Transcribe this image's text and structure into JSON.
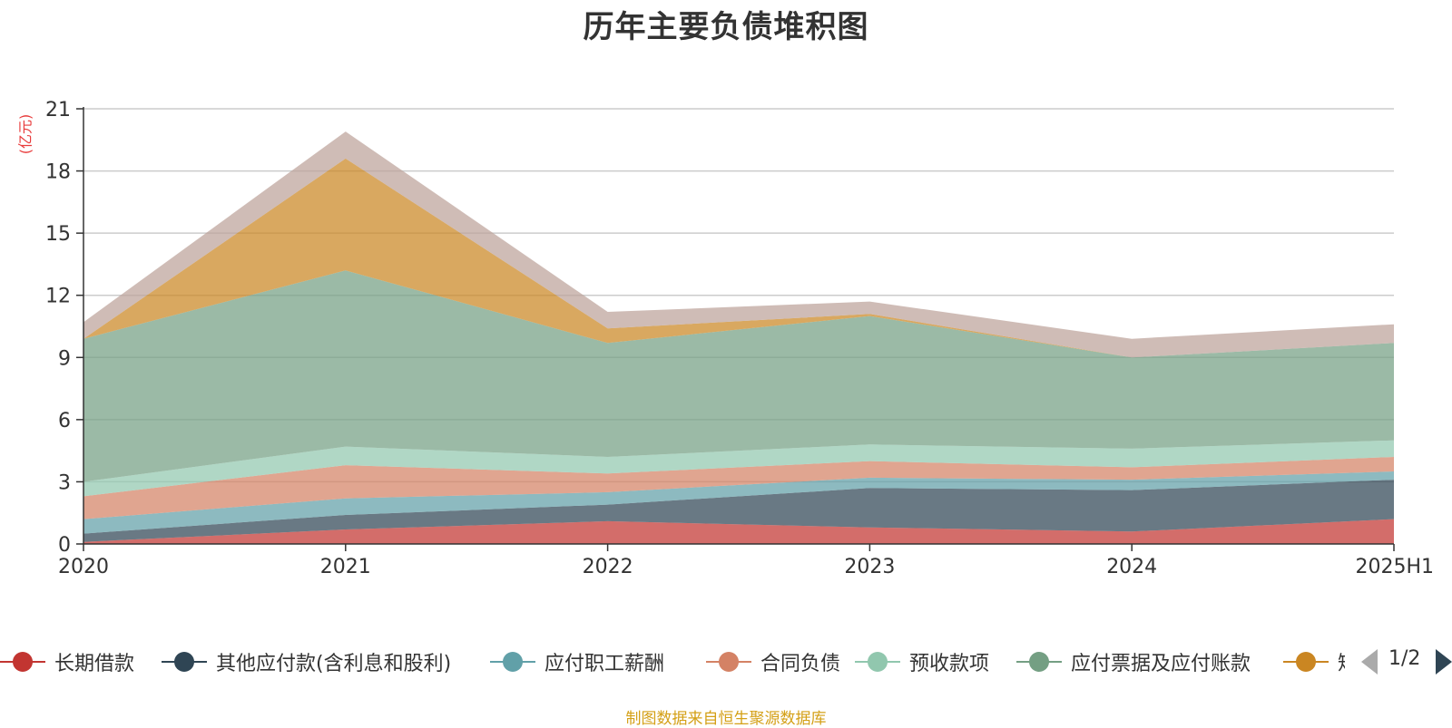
{
  "title": "历年主要负债堆积图",
  "unit_label": "(亿元)",
  "source_note": "制图数据来自恒生聚源数据库",
  "legend_pager": "1/2",
  "chart_data": {
    "type": "area",
    "stacked": true,
    "title": "历年主要负债堆积图",
    "ylabel": "(亿元)",
    "xlabel": "",
    "ylim": [
      0,
      21
    ],
    "yticks": [
      0,
      3,
      6,
      9,
      12,
      15,
      18,
      21
    ],
    "grid": true,
    "legend_position": "bottom",
    "categories": [
      "2020",
      "2021",
      "2022",
      "2023",
      "2024",
      "2025H1"
    ],
    "series": [
      {
        "name": "长期借款",
        "color": "#c23531",
        "values": [
          0.1,
          0.7,
          1.1,
          0.8,
          0.6,
          1.2
        ]
      },
      {
        "name": "其他应付款(含利息和股利)",
        "color": "#2f4554",
        "values": [
          0.4,
          0.7,
          0.8,
          1.9,
          2.0,
          1.9
        ]
      },
      {
        "name": "应付职工薪酬",
        "color": "#61a0a8",
        "values": [
          0.7,
          0.8,
          0.6,
          0.5,
          0.5,
          0.4
        ]
      },
      {
        "name": "合同负债",
        "color": "#d48265",
        "values": [
          1.1,
          1.6,
          0.9,
          0.8,
          0.6,
          0.7
        ]
      },
      {
        "name": "预收款项",
        "color": "#91c7ae",
        "values": [
          0.7,
          0.9,
          0.8,
          0.8,
          0.9,
          0.8
        ]
      },
      {
        "name": "应付票据及应付账款",
        "color": "#749f83",
        "values": [
          6.9,
          8.5,
          5.5,
          6.2,
          4.4,
          4.7
        ]
      },
      {
        "name": "短期借款",
        "color": "#ca8622",
        "values": [
          0.0,
          5.4,
          0.7,
          0.1,
          0.0,
          0.0
        ]
      },
      {
        "name": "",
        "color": "#bda29a",
        "values": [
          0.8,
          1.3,
          0.8,
          0.6,
          0.9,
          0.9
        ]
      }
    ]
  }
}
